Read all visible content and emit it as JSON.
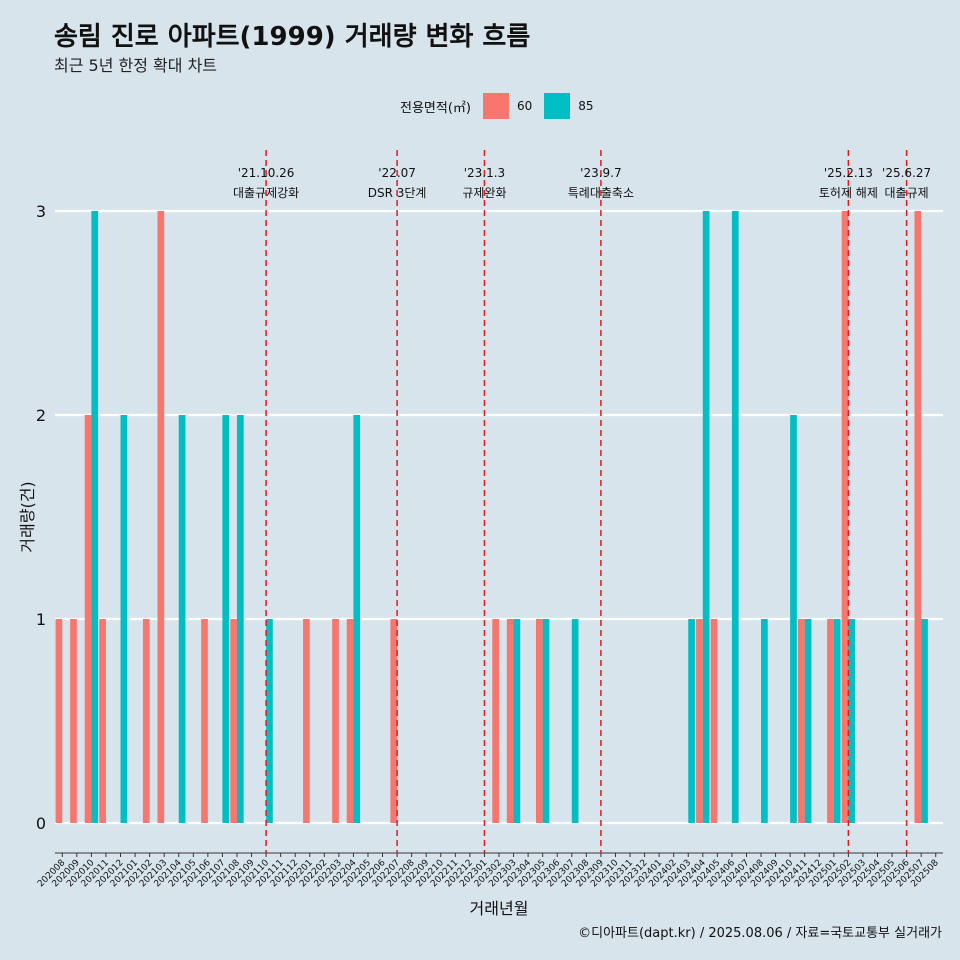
{
  "title": "송림 진로 아파트(1999) 거래량 변화 흐름",
  "subtitle": "최근 5년 한정 확대 차트",
  "caption": "©디아파트(dapt.kr) / 2025.08.06 / 자료=국토교통부 실거래가",
  "legend": {
    "title": "전용면적(㎡)",
    "items": [
      {
        "label": "60",
        "color": "#F8766D"
      },
      {
        "label": "85",
        "color": "#00BFC4"
      }
    ]
  },
  "chart_data": {
    "type": "bar",
    "xlabel": "거래년월",
    "ylabel": "거래량(건)",
    "ylim": [
      0,
      3
    ],
    "yticks": [
      0,
      1,
      2,
      3
    ],
    "categories": [
      "202008",
      "202009",
      "202010",
      "202011",
      "202012",
      "202101",
      "202102",
      "202103",
      "202104",
      "202105",
      "202106",
      "202107",
      "202108",
      "202109",
      "202110",
      "202111",
      "202112",
      "202201",
      "202202",
      "202203",
      "202204",
      "202205",
      "202206",
      "202207",
      "202208",
      "202209",
      "202210",
      "202211",
      "202212",
      "202301",
      "202302",
      "202303",
      "202304",
      "202305",
      "202306",
      "202307",
      "202308",
      "202309",
      "202310",
      "202311",
      "202312",
      "202401",
      "202402",
      "202403",
      "202404",
      "202405",
      "202406",
      "202407",
      "202408",
      "202409",
      "202410",
      "202411",
      "202412",
      "202501",
      "202502",
      "202503",
      "202504",
      "202505",
      "202506",
      "202507",
      "202508"
    ],
    "series": [
      {
        "name": "60",
        "color": "#F8766D",
        "values": [
          1,
          1,
          2,
          1,
          0,
          0,
          1,
          3,
          0,
          0,
          1,
          0,
          1,
          0,
          0,
          0,
          0,
          1,
          0,
          1,
          1,
          0,
          0,
          1,
          0,
          0,
          0,
          0,
          0,
          0,
          1,
          1,
          0,
          1,
          0,
          0,
          0,
          0,
          0,
          0,
          0,
          0,
          0,
          0,
          1,
          1,
          0,
          0,
          0,
          0,
          0,
          1,
          0,
          1,
          3,
          0,
          0,
          0,
          0,
          3,
          0
        ]
      },
      {
        "name": "85",
        "color": "#00BFC4",
        "values": [
          0,
          0,
          3,
          0,
          2,
          0,
          0,
          0,
          2,
          0,
          0,
          2,
          2,
          0,
          1,
          0,
          0,
          0,
          0,
          0,
          2,
          0,
          0,
          0,
          0,
          0,
          0,
          0,
          0,
          0,
          0,
          1,
          0,
          1,
          0,
          1,
          0,
          0,
          0,
          0,
          0,
          0,
          0,
          1,
          3,
          0,
          3,
          0,
          1,
          0,
          2,
          1,
          0,
          1,
          1,
          0,
          0,
          0,
          0,
          1,
          0
        ]
      }
    ],
    "events": [
      {
        "month": "202110",
        "date": "'21.10.26",
        "label": "대출규제강화"
      },
      {
        "month": "202207",
        "date": "'22.07",
        "label": "DSR 3단계"
      },
      {
        "month": "202301",
        "date": "'23.1.3",
        "label": "규제완화"
      },
      {
        "month": "202309",
        "date": "'23.9.7",
        "label": "특례대출축소"
      },
      {
        "month": "202502",
        "date": "'25.2.13",
        "label": "토허제 해제"
      },
      {
        "month": "202506",
        "date": "'25.6.27",
        "label": "대출규제"
      }
    ],
    "grid": true,
    "legend_position": "top"
  }
}
